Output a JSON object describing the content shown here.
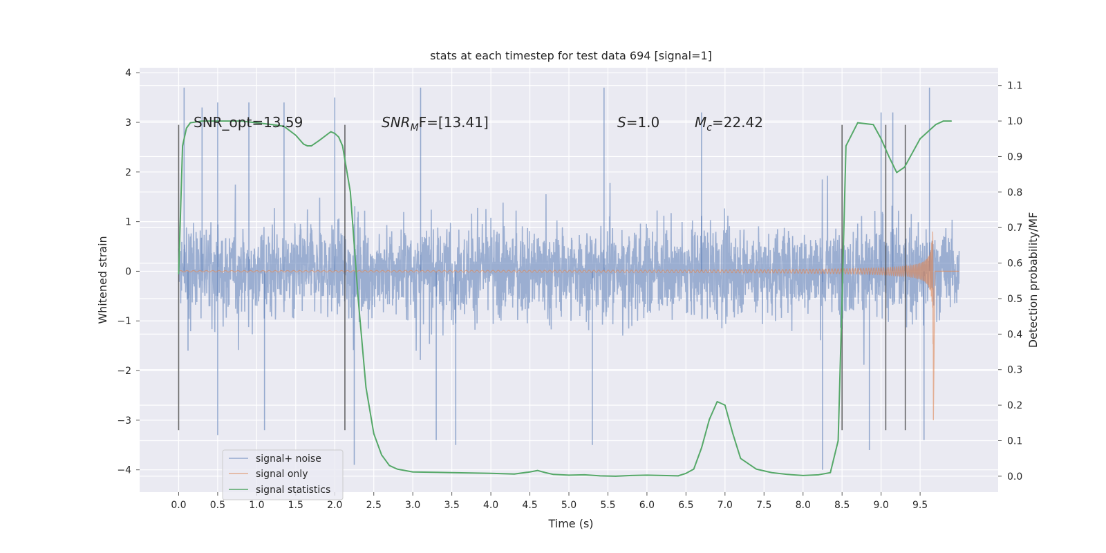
{
  "chart_data": {
    "type": "line",
    "title": "stats at each timestep for test data 694 [signal=1]",
    "xlabel": "Time (s)",
    "ylabel": "Whitened strain",
    "y2label": "Detection probability/MF",
    "xlim": [
      -0.5,
      10.5
    ],
    "ylim": [
      -4.45,
      4.1
    ],
    "y2lim": [
      -0.045,
      1.15
    ],
    "x_ticks": [
      0.0,
      0.5,
      1.0,
      1.5,
      2.0,
      2.5,
      3.0,
      3.5,
      4.0,
      4.5,
      5.0,
      5.5,
      6.0,
      6.5,
      7.0,
      7.5,
      8.0,
      8.5,
      9.0,
      9.5
    ],
    "x_tick_labels": [
      "0.0",
      "0.5",
      "1.0",
      "1.5",
      "2.0",
      "2.5",
      "3.0",
      "3.5",
      "4.0",
      "4.5",
      "5.0",
      "5.5",
      "6.0",
      "6.5",
      "7.0",
      "7.5",
      "8.0",
      "8.5",
      "9.0",
      "9.5"
    ],
    "y_ticks": [
      -4,
      -3,
      -2,
      -1,
      0,
      1,
      2,
      3,
      4
    ],
    "y_tick_labels": [
      "−4",
      "−3",
      "−2",
      "−1",
      "0",
      "1",
      "2",
      "3",
      "4"
    ],
    "y2_ticks": [
      0.0,
      0.1,
      0.2,
      0.3,
      0.4,
      0.5,
      0.6,
      0.7,
      0.8,
      0.9,
      1.0,
      1.1
    ],
    "y2_tick_labels": [
      "0.0",
      "0.1",
      "0.2",
      "0.3",
      "0.4",
      "0.5",
      "0.6",
      "0.7",
      "0.8",
      "0.9",
      "1.0",
      "1.1"
    ],
    "grid": true,
    "legend_position": "bottom-left",
    "annotations": {
      "snr_opt": "SNR_opt=13.59",
      "snr_mf_base": "SNR",
      "snr_mf_sub": "M",
      "snr_mf_rest": "F=[13.41]",
      "s_italic": "S",
      "s_rest": "=1.0",
      "mc_base": "M",
      "mc_sub": "c",
      "mc_rest": "=22.42"
    },
    "vertical_markers": [
      0.0,
      2.13,
      8.5,
      9.06,
      9.31
    ],
    "series": [
      {
        "name": "signal+ noise",
        "color": "#4c72b0",
        "description": "noisy whitened strain, approx ±1.7 typical with spikes to ±3.7",
        "t_range": [
          0.0,
          10.0
        ],
        "envelope": 1.7,
        "spikes": [
          {
            "x": 0.07,
            "y": 3.7
          },
          {
            "x": 0.12,
            "y": -1.6
          },
          {
            "x": 0.3,
            "y": 3.3
          },
          {
            "x": 0.5,
            "y": -3.3
          },
          {
            "x": 0.5,
            "y": 3.4
          },
          {
            "x": 0.9,
            "y": 3.4
          },
          {
            "x": 1.1,
            "y": -3.2
          },
          {
            "x": 1.35,
            "y": 3.4
          },
          {
            "x": 2.0,
            "y": 3.5
          },
          {
            "x": 2.25,
            "y": -3.9
          },
          {
            "x": 3.1,
            "y": 3.7
          },
          {
            "x": 3.3,
            "y": -3.4
          },
          {
            "x": 3.55,
            "y": -3.5
          },
          {
            "x": 5.3,
            "y": -3.5
          },
          {
            "x": 5.45,
            "y": 3.7
          },
          {
            "x": 6.7,
            "y": 3.2
          },
          {
            "x": 8.25,
            "y": -4.0
          },
          {
            "x": 8.85,
            "y": -3.6
          },
          {
            "x": 9.0,
            "y": 3.2
          },
          {
            "x": 9.15,
            "y": 3.2
          },
          {
            "x": 9.55,
            "y": -3.4
          },
          {
            "x": 9.62,
            "y": 3.7
          }
        ]
      },
      {
        "name": "signal only",
        "color": "#dd8452",
        "description": "chirp signal growing in amplitude until merger near 9.67 s",
        "t_merger": 9.67,
        "peak_amplitude": 2.6
      },
      {
        "name": "signal statistics",
        "color": "#55a868",
        "axis": "right",
        "x": [
          0.0,
          0.05,
          0.1,
          0.15,
          0.3,
          0.5,
          0.8,
          1.0,
          1.2,
          1.35,
          1.5,
          1.6,
          1.65,
          1.7,
          1.8,
          1.95,
          2.0,
          2.05,
          2.1,
          2.2,
          2.3,
          2.4,
          2.5,
          2.6,
          2.7,
          2.8,
          3.0,
          3.5,
          4.0,
          4.3,
          4.5,
          4.6,
          4.7,
          4.8,
          5.0,
          5.2,
          5.4,
          5.6,
          5.8,
          6.0,
          6.2,
          6.4,
          6.5,
          6.6,
          6.7,
          6.8,
          6.9,
          7.0,
          7.1,
          7.2,
          7.4,
          7.6,
          7.8,
          8.0,
          8.2,
          8.35,
          8.45,
          8.5,
          8.55,
          8.7,
          8.9,
          9.0,
          9.1,
          9.2,
          9.3,
          9.4,
          9.5,
          9.6,
          9.7,
          9.8,
          9.9
        ],
        "values": [
          0.57,
          0.93,
          0.98,
          0.995,
          1.0,
          1.0,
          1.0,
          0.995,
          0.99,
          0.985,
          0.96,
          0.935,
          0.93,
          0.93,
          0.945,
          0.97,
          0.965,
          0.955,
          0.93,
          0.8,
          0.5,
          0.25,
          0.12,
          0.06,
          0.03,
          0.02,
          0.012,
          0.01,
          0.008,
          0.006,
          0.012,
          0.016,
          0.01,
          0.005,
          0.003,
          0.004,
          0.001,
          0.0,
          0.002,
          0.003,
          0.002,
          0.001,
          0.008,
          0.02,
          0.08,
          0.16,
          0.21,
          0.2,
          0.12,
          0.05,
          0.02,
          0.01,
          0.005,
          0.002,
          0.004,
          0.01,
          0.1,
          0.5,
          0.93,
          0.995,
          0.99,
          0.95,
          0.9,
          0.855,
          0.87,
          0.91,
          0.95,
          0.97,
          0.99,
          1.0,
          1.0
        ]
      }
    ]
  }
}
